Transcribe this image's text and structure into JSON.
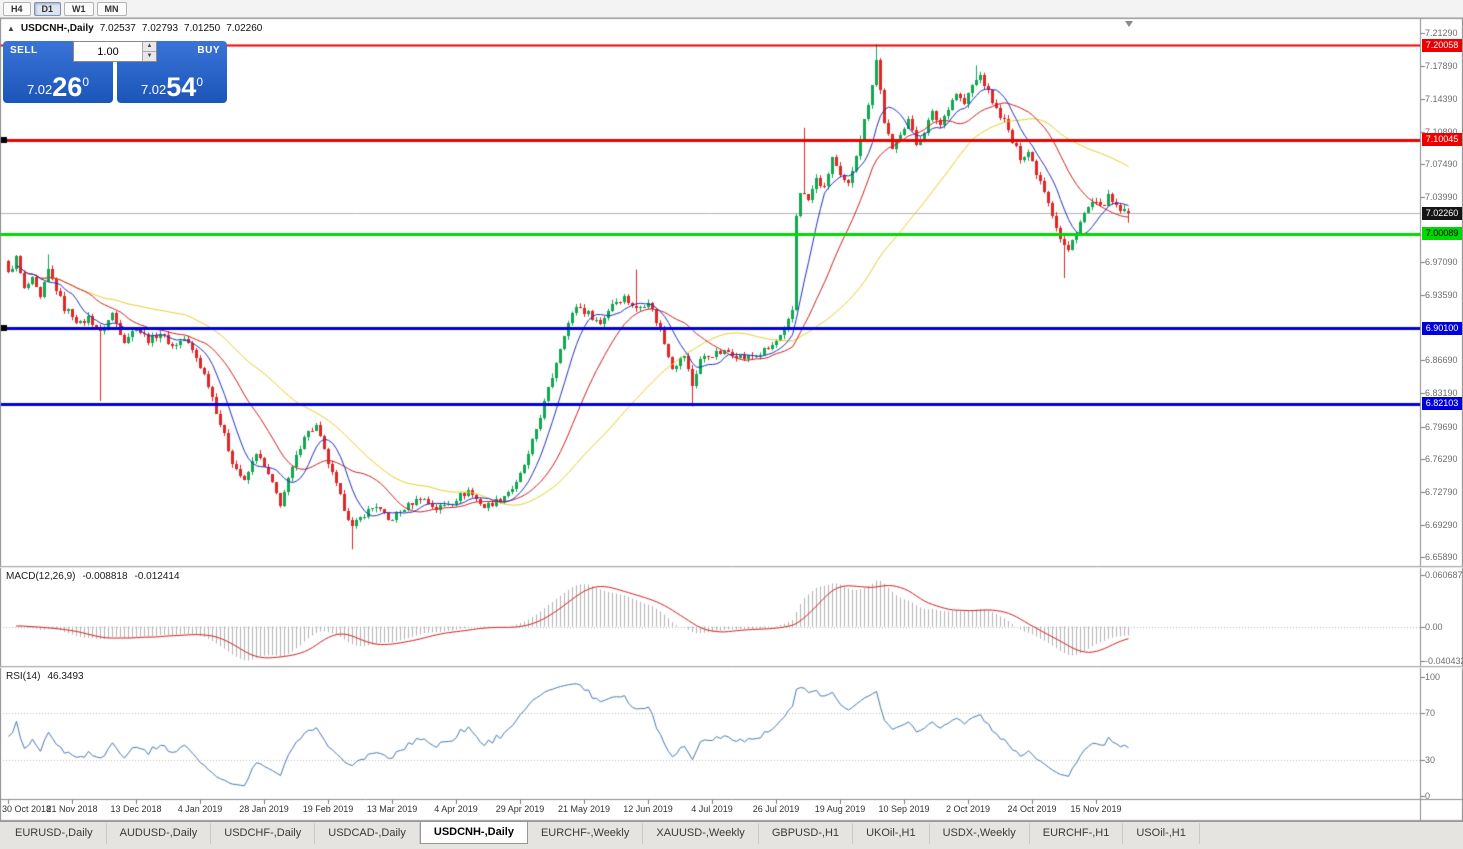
{
  "toolbar": {
    "timeframes": [
      {
        "label": "H4",
        "active": false
      },
      {
        "label": "D1",
        "active": true
      },
      {
        "label": "W1",
        "active": false
      },
      {
        "label": "MN",
        "active": false
      }
    ]
  },
  "chart": {
    "title_symbol": "USDCNH-,Daily",
    "ohlc": {
      "open": "7.02537",
      "high": "7.02793",
      "low": "7.01250",
      "close": "7.02260"
    }
  },
  "trade_panel": {
    "sell_label": "SELL",
    "buy_label": "BUY",
    "volume": "1.00",
    "sell_price": {
      "main": "7.02",
      "big": "26",
      "sup": "0"
    },
    "buy_price": {
      "main": "7.02",
      "big": "54",
      "sup": "0"
    }
  },
  "price_axis": {
    "labels": [
      {
        "text": "7.21290",
        "value": 7.2129
      },
      {
        "text": "7.17890",
        "value": 7.1789
      },
      {
        "text": "7.14390",
        "value": 7.1439
      },
      {
        "text": "7.10890",
        "value": 7.1089
      },
      {
        "text": "7.07490",
        "value": 7.0749
      },
      {
        "text": "7.03990",
        "value": 7.0399
      },
      {
        "text": "6.97090",
        "value": 6.9709
      },
      {
        "text": "6.93590",
        "value": 6.9359
      },
      {
        "text": "6.86690",
        "value": 6.8669
      },
      {
        "text": "6.83190",
        "value": 6.8319
      },
      {
        "text": "6.79690",
        "value": 6.7969
      },
      {
        "text": "6.76290",
        "value": 6.7629
      },
      {
        "text": "6.72790",
        "value": 6.7279
      },
      {
        "text": "6.69290",
        "value": 6.6929
      },
      {
        "text": "6.65890",
        "value": 6.6589
      }
    ],
    "badges": [
      {
        "text": "7.20058",
        "value": 7.20058,
        "bg": "#ee0000",
        "fg": "#ffffff"
      },
      {
        "text": "7.10045",
        "value": 7.10045,
        "bg": "#ee0000",
        "fg": "#ffffff"
      },
      {
        "text": "7.02260",
        "value": 7.0226,
        "bg": "#151515",
        "fg": "#ffffff"
      },
      {
        "text": "7.00089",
        "value": 7.00089,
        "bg": "#00d800",
        "fg": "#000000"
      },
      {
        "text": "6.90100",
        "value": 6.901,
        "bg": "#0000dd",
        "fg": "#ffffff"
      },
      {
        "text": "6.82103",
        "value": 6.82103,
        "bg": "#0000dd",
        "fg": "#ffffff"
      }
    ]
  },
  "macd_panel": {
    "name": "MACD(12,26,9)",
    "value_main": "-0.008818",
    "value_signal": "-0.012414",
    "axis_labels": [
      {
        "text": "0.060687",
        "value": 0.060687
      },
      {
        "text": "0.00",
        "value": 0
      },
      {
        "text": "-0.040432",
        "value": -0.040432
      }
    ]
  },
  "rsi_panel": {
    "name": "RSI(14)",
    "value": "46.3493",
    "axis_labels": [
      {
        "text": "100",
        "value": 100
      },
      {
        "text": "70",
        "value": 70
      },
      {
        "text": "30",
        "value": 30
      },
      {
        "text": "0",
        "value": 0
      }
    ],
    "levels": [
      70,
      30
    ]
  },
  "time_axis": {
    "labels": [
      "30 Oct 2018",
      "21 Nov 2018",
      "13 Dec 2018",
      "4 Jan 2019",
      "28 Jan 2019",
      "19 Feb 2019",
      "13 Mar 2019",
      "4 Apr 2019",
      "29 Apr 2019",
      "21 May 2019",
      "12 Jun 2019",
      "4 Jul 2019",
      "26 Jul 2019",
      "19 Aug 2019",
      "10 Sep 2019",
      "2 Oct 2019",
      "24 Oct 2019",
      "15 Nov 2019"
    ],
    "candles_per_label": 16
  },
  "tabs": [
    {
      "label": "EURUSD-,Daily",
      "active": false
    },
    {
      "label": "AUDUSD-,Daily",
      "active": false
    },
    {
      "label": "USDCHF-,Daily",
      "active": false
    },
    {
      "label": "USDCAD-,Daily",
      "active": false
    },
    {
      "label": "USDCNH-,Daily",
      "active": true
    },
    {
      "label": "EURCHF-,Weekly",
      "active": false
    },
    {
      "label": "XAUUSD-,Weekly",
      "active": false
    },
    {
      "label": "GBPUSD-,H1",
      "active": false
    },
    {
      "label": "UKOil-,H1",
      "active": false
    },
    {
      "label": "USDX-,Weekly",
      "active": false
    },
    {
      "label": "EURCHF-,H1",
      "active": false
    },
    {
      "label": "USOil-,H1",
      "active": false
    }
  ],
  "chart_data": {
    "type": "candlestick",
    "symbol": "USDCNH-",
    "period": "Daily",
    "visible_candles": 281,
    "price_range": [
      6.6493,
      7.2271
    ],
    "macd_range": [
      -0.0463,
      0.0689
    ],
    "rsi_range": [
      0,
      100
    ],
    "current_price": 7.0226,
    "last_candle": {
      "open": 7.02537,
      "high": 7.02793,
      "low": 7.0125,
      "close": 7.0226
    },
    "hlines": [
      {
        "value": 7.20058,
        "color": "#ee0000",
        "width": 2
      },
      {
        "value": 7.10045,
        "color": "#ee0000",
        "width": 3
      },
      {
        "value": 7.00089,
        "color": "#00d800",
        "width": 3
      },
      {
        "value": 6.901,
        "color": "#0000dd",
        "width": 3
      },
      {
        "value": 6.82103,
        "color": "#0000dd",
        "width": 3
      }
    ],
    "anchors": [
      7.10045,
      6.901
    ],
    "close_waypoints": [
      [
        0,
        6.958
      ],
      [
        2,
        6.975
      ],
      [
        4,
        6.942
      ],
      [
        6,
        6.952
      ],
      [
        8,
        6.932
      ],
      [
        10,
        6.962
      ],
      [
        12,
        6.942
      ],
      [
        14,
        6.922
      ],
      [
        16,
        6.915
      ],
      [
        18,
        6.905
      ],
      [
        20,
        6.912
      ],
      [
        23,
        6.896
      ],
      [
        26,
        6.916
      ],
      [
        29,
        6.888
      ],
      [
        32,
        6.902
      ],
      [
        35,
        6.888
      ],
      [
        38,
        6.896
      ],
      [
        41,
        6.882
      ],
      [
        44,
        6.89
      ],
      [
        47,
        6.87
      ],
      [
        50,
        6.842
      ],
      [
        53,
        6.8
      ],
      [
        56,
        6.76
      ],
      [
        59,
        6.738
      ],
      [
        62,
        6.77
      ],
      [
        65,
        6.745
      ],
      [
        68,
        6.715
      ],
      [
        71,
        6.752
      ],
      [
        74,
        6.788
      ],
      [
        77,
        6.797
      ],
      [
        80,
        6.758
      ],
      [
        83,
        6.722
      ],
      [
        86,
        6.69
      ],
      [
        89,
        6.705
      ],
      [
        92,
        6.713
      ],
      [
        95,
        6.697
      ],
      [
        99,
        6.71
      ],
      [
        103,
        6.722
      ],
      [
        107,
        6.71
      ],
      [
        111,
        6.718
      ],
      [
        115,
        6.729
      ],
      [
        119,
        6.712
      ],
      [
        123,
        6.72
      ],
      [
        127,
        6.736
      ],
      [
        130,
        6.766
      ],
      [
        133,
        6.808
      ],
      [
        136,
        6.85
      ],
      [
        139,
        6.896
      ],
      [
        142,
        6.925
      ],
      [
        145,
        6.916
      ],
      [
        148,
        6.906
      ],
      [
        151,
        6.928
      ],
      [
        154,
        6.934
      ],
      [
        157,
        6.921
      ],
      [
        160,
        6.93
      ],
      [
        163,
        6.898
      ],
      [
        166,
        6.86
      ],
      [
        169,
        6.872
      ],
      [
        171,
        6.84
      ],
      [
        173,
        6.868
      ],
      [
        176,
        6.873
      ],
      [
        180,
        6.876
      ],
      [
        184,
        6.869
      ],
      [
        188,
        6.874
      ],
      [
        191,
        6.882
      ],
      [
        194,
        6.896
      ],
      [
        196,
        6.92
      ],
      [
        197,
        7.02
      ],
      [
        198,
        7.046
      ],
      [
        200,
        7.036
      ],
      [
        202,
        7.058
      ],
      [
        204,
        7.048
      ],
      [
        206,
        7.082
      ],
      [
        208,
        7.06
      ],
      [
        210,
        7.052
      ],
      [
        212,
        7.086
      ],
      [
        214,
        7.12
      ],
      [
        216,
        7.16
      ],
      [
        217,
        7.185
      ],
      [
        219,
        7.12
      ],
      [
        221,
        7.088
      ],
      [
        223,
        7.108
      ],
      [
        225,
        7.122
      ],
      [
        227,
        7.095
      ],
      [
        229,
        7.11
      ],
      [
        231,
        7.128
      ],
      [
        233,
        7.116
      ],
      [
        235,
        7.135
      ],
      [
        237,
        7.15
      ],
      [
        239,
        7.138
      ],
      [
        241,
        7.158
      ],
      [
        243,
        7.168
      ],
      [
        245,
        7.15
      ],
      [
        247,
        7.132
      ],
      [
        249,
        7.12
      ],
      [
        251,
        7.098
      ],
      [
        253,
        7.082
      ],
      [
        255,
        7.088
      ],
      [
        257,
        7.066
      ],
      [
        259,
        7.048
      ],
      [
        261,
        7.022
      ],
      [
        263,
        6.995
      ],
      [
        265,
        6.982
      ],
      [
        267,
        7.005
      ],
      [
        269,
        7.022
      ],
      [
        271,
        7.034
      ],
      [
        273,
        7.028
      ],
      [
        275,
        7.04
      ],
      [
        277,
        7.028
      ],
      [
        280,
        7.0226
      ]
    ],
    "special_wicks": [
      [
        10,
        "high",
        6.979
      ],
      [
        23,
        "low",
        6.824
      ],
      [
        86,
        "low",
        6.667
      ],
      [
        157,
        "high",
        6.963
      ],
      [
        171,
        "low",
        6.818
      ],
      [
        199,
        "high",
        7.113
      ],
      [
        217,
        "high",
        7.2016
      ],
      [
        242,
        "high",
        7.179
      ],
      [
        264,
        "low",
        6.954
      ]
    ],
    "ma_periods": {
      "fast": 8,
      "mid": 20,
      "slow": 45
    },
    "colors": {
      "up": "#13a653",
      "down": "#e02626",
      "ma_fast": "#2233bb",
      "ma_mid": "#cc2222",
      "ma_slow": "#e8cf2a",
      "macd_hist": "#b4b4b4",
      "macd_signal": "#cc2222",
      "rsi": "#4a7ab0",
      "current_price_line": "#b4b4b4",
      "anchor": "#000000"
    }
  }
}
